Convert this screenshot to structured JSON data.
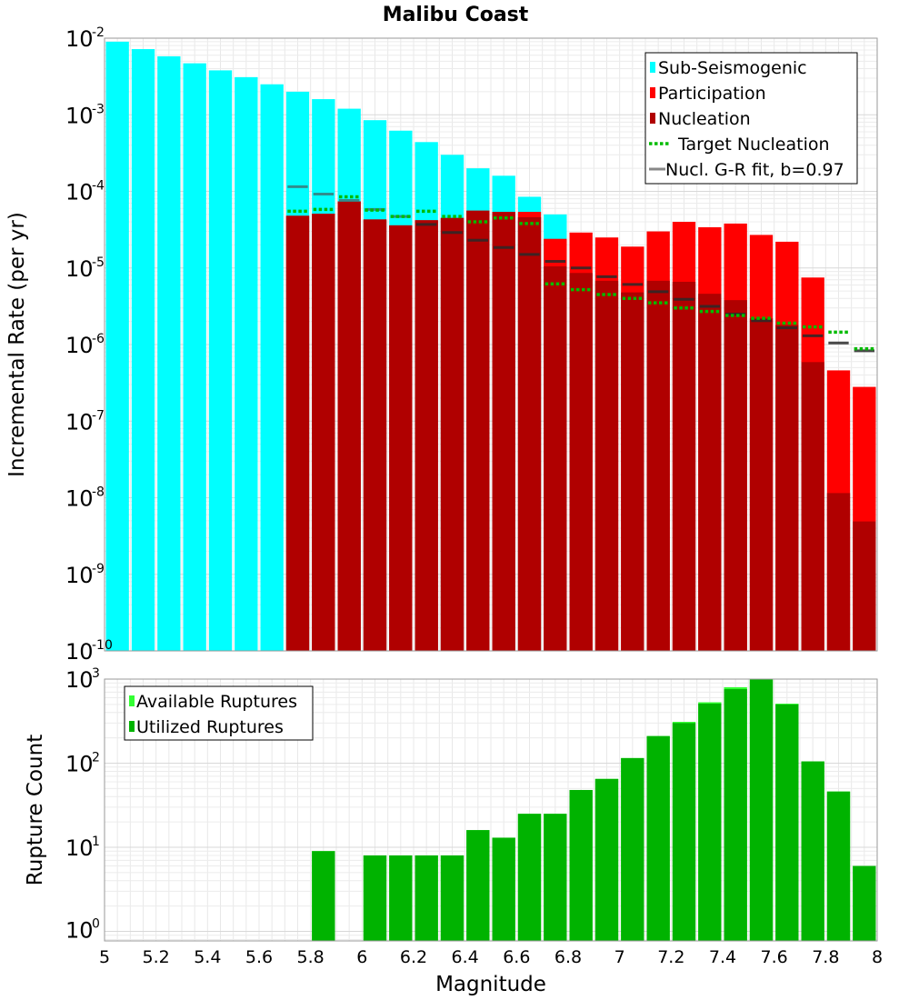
{
  "chart_data": [
    {
      "type": "bar",
      "title": "Malibu Coast",
      "xlabel": "Magnitude",
      "ylabel": "Incremental Rate (per yr)",
      "xlim": [
        5,
        8
      ],
      "ylim": [
        1e-10,
        0.01
      ],
      "yscale": "log",
      "bin_width": 0.1,
      "x_ticks": [
        "5",
        "5.2",
        "5.4",
        "5.6",
        "5.8",
        "6",
        "6.2",
        "6.4",
        "6.6",
        "6.8",
        "7",
        "7.2",
        "7.4",
        "7.6",
        "7.8",
        "8"
      ],
      "y_ticks": [
        {
          "base": "10",
          "exp": "-10"
        },
        {
          "base": "10",
          "exp": "-9"
        },
        {
          "base": "10",
          "exp": "-8"
        },
        {
          "base": "10",
          "exp": "-7"
        },
        {
          "base": "10",
          "exp": "-6"
        },
        {
          "base": "10",
          "exp": "-5"
        },
        {
          "base": "10",
          "exp": "-4"
        },
        {
          "base": "10",
          "exp": "-3"
        },
        {
          "base": "10",
          "exp": "-2"
        }
      ],
      "legend_position": "top-right",
      "x": [
        5.05,
        5.15,
        5.25,
        5.35,
        5.45,
        5.55,
        5.65,
        5.75,
        5.85,
        5.95,
        6.05,
        6.15,
        6.25,
        6.35,
        6.45,
        6.55,
        6.65,
        6.75,
        6.85,
        6.95,
        7.05,
        7.15,
        7.25,
        7.35,
        7.45,
        7.55,
        7.65,
        7.75,
        7.85,
        7.95
      ],
      "series": [
        {
          "name": "Sub-Seismogenic",
          "color": "#00ffff",
          "style": "bar",
          "values": [
            0.009,
            0.0072,
            0.0058,
            0.0047,
            0.0038,
            0.0031,
            0.0025,
            0.002,
            0.0016,
            0.0012,
            0.00085,
            0.00062,
            0.00044,
            0.0003,
            0.0002,
            0.00016,
            8.5e-05,
            5e-05,
            null,
            null,
            null,
            null,
            null,
            null,
            null,
            null,
            null,
            null,
            null,
            null
          ]
        },
        {
          "name": "Participation",
          "color": "#ff0000",
          "style": "bar",
          "values": [
            null,
            null,
            null,
            null,
            null,
            null,
            null,
            4.8e-05,
            5.1e-05,
            7.4e-05,
            4.3e-05,
            3.6e-05,
            4.2e-05,
            4.5e-05,
            5.6e-05,
            5.4e-05,
            5.4e-05,
            2.4e-05,
            2.9e-05,
            2.5e-05,
            1.9e-05,
            3e-05,
            4e-05,
            3.4e-05,
            3.8e-05,
            2.7e-05,
            2.2e-05,
            7.5e-06,
            4.6e-07,
            2.8e-07
          ]
        },
        {
          "name": "Nucleation",
          "color": "#b00000",
          "style": "bar",
          "values": [
            null,
            null,
            null,
            null,
            null,
            null,
            null,
            4.8e-05,
            5.1e-05,
            7.4e-05,
            4.3e-05,
            3.6e-05,
            4.2e-05,
            4.5e-05,
            5.6e-05,
            5.4e-05,
            4.6e-05,
            1.05e-05,
            8.6e-06,
            6.8e-06,
            4.8e-06,
            6.8e-06,
            6.6e-06,
            4.6e-06,
            3.8e-06,
            2.2e-06,
            1.8e-06,
            5.9e-07,
            1.15e-08,
            4.9e-09
          ]
        },
        {
          "name": "Target Nucleation",
          "color": "#00bb00",
          "style": "dotted",
          "values": [
            null,
            null,
            null,
            null,
            null,
            null,
            null,
            5.5e-05,
            5.8e-05,
            8.5e-05,
            5.7e-05,
            4.7e-05,
            5.5e-05,
            4.7e-05,
            4e-05,
            4.5e-05,
            3.8e-05,
            6.2e-06,
            5.2e-06,
            4.5e-06,
            4e-06,
            3.5e-06,
            3e-06,
            2.7e-06,
            2.4e-06,
            2.2e-06,
            1.9e-06,
            1.7e-06,
            1.45e-06,
            8.8e-07
          ]
        },
        {
          "name": "Nucl. G-R fit, b=0.97",
          "color": "#888888",
          "style": "dash",
          "values": [
            null,
            null,
            null,
            null,
            null,
            null,
            null,
            0.000115,
            9.2e-05,
            7.6e-05,
            5.8e-05,
            4.7e-05,
            3.7e-05,
            2.9e-05,
            2.3e-05,
            1.85e-05,
            1.5e-05,
            1.22e-05,
            1e-05,
            7.7e-06,
            6.1e-06,
            4.9e-06,
            3.9e-06,
            3.15e-06,
            2.5e-06,
            2.05e-06,
            1.65e-06,
            1.3e-06,
            1.05e-06,
            8.3e-07
          ]
        }
      ]
    },
    {
      "type": "bar",
      "title": "",
      "xlabel": "Magnitude",
      "ylabel": "Rupture Count",
      "xlim": [
        5,
        8
      ],
      "ylim": [
        0.77,
        1000
      ],
      "yscale": "log",
      "x_ticks": [
        "5",
        "5.2",
        "5.4",
        "5.6",
        "5.8",
        "6",
        "6.2",
        "6.4",
        "6.6",
        "6.8",
        "7",
        "7.2",
        "7.4",
        "7.6",
        "7.8",
        "8"
      ],
      "y_ticks": [
        {
          "base": "10",
          "exp": "0"
        },
        {
          "base": "10",
          "exp": "1"
        },
        {
          "base": "10",
          "exp": "2"
        },
        {
          "base": "10",
          "exp": "3"
        }
      ],
      "legend_position": "top-left",
      "x": [
        5.05,
        5.15,
        5.25,
        5.35,
        5.45,
        5.55,
        5.65,
        5.75,
        5.85,
        5.95,
        6.05,
        6.15,
        6.25,
        6.35,
        6.45,
        6.55,
        6.65,
        6.75,
        6.85,
        6.95,
        7.05,
        7.15,
        7.25,
        7.35,
        7.45,
        7.55,
        7.65,
        7.75,
        7.85,
        7.95
      ],
      "series": [
        {
          "name": "Available Ruptures",
          "color": "#33ff33",
          "style": "bar",
          "values": [
            null,
            null,
            null,
            null,
            null,
            null,
            null,
            null,
            9,
            null,
            8,
            8,
            8,
            8,
            16,
            13,
            25,
            25,
            48,
            65,
            115,
            210,
            310,
            530,
            800,
            1000,
            510,
            105,
            46,
            6
          ]
        },
        {
          "name": "Utilized Ruptures",
          "color": "#00b300",
          "style": "bar",
          "values": [
            null,
            null,
            null,
            null,
            null,
            null,
            null,
            null,
            9,
            null,
            8,
            8,
            8,
            8,
            16,
            13,
            25,
            25,
            48,
            65,
            115,
            210,
            300,
            510,
            760,
            1000,
            500,
            105,
            46,
            6
          ]
        }
      ]
    }
  ]
}
